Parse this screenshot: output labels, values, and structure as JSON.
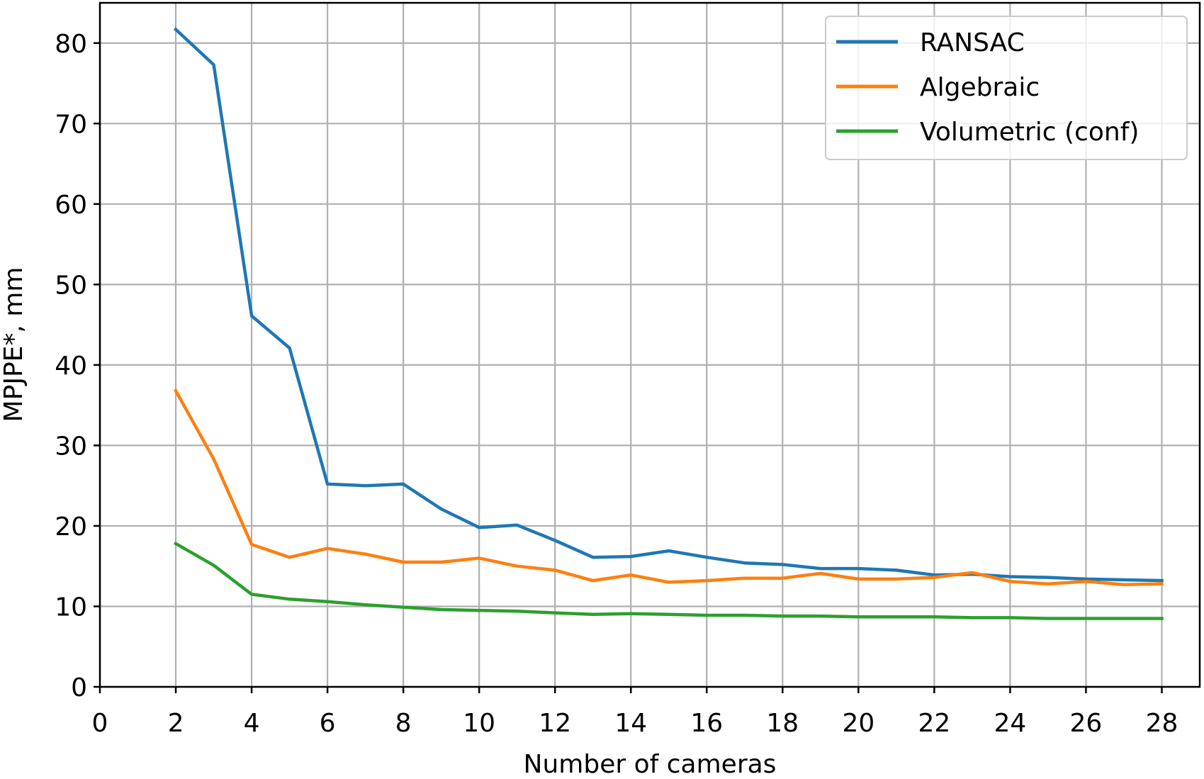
{
  "chart_data": {
    "type": "line",
    "title": "",
    "xlabel": "Number of cameras",
    "ylabel": "MPJPE*, mm",
    "xlim": [
      0,
      29
    ],
    "ylim": [
      0,
      85
    ],
    "x_ticks": [
      0,
      2,
      4,
      6,
      8,
      10,
      12,
      14,
      16,
      18,
      20,
      22,
      24,
      26,
      28
    ],
    "y_ticks": [
      0,
      10,
      20,
      30,
      40,
      50,
      60,
      70,
      80
    ],
    "grid": true,
    "legend_position": "top-right",
    "x": [
      2,
      3,
      4,
      5,
      6,
      7,
      8,
      9,
      10,
      11,
      12,
      13,
      14,
      15,
      16,
      17,
      18,
      19,
      20,
      21,
      22,
      23,
      24,
      25,
      26,
      27,
      28
    ],
    "series": [
      {
        "name": "RANSAC",
        "color": "#1f77b4",
        "values": [
          81.7,
          77.3,
          46.1,
          42.1,
          25.2,
          25.0,
          25.2,
          22.1,
          19.8,
          20.1,
          18.2,
          16.1,
          16.2,
          16.9,
          16.1,
          15.4,
          15.2,
          14.7,
          14.7,
          14.5,
          13.9,
          14.0,
          13.7,
          13.6,
          13.4,
          13.3,
          13.2
        ]
      },
      {
        "name": "Algebraic",
        "color": "#ff7f0e",
        "values": [
          36.8,
          28.3,
          17.7,
          16.1,
          17.2,
          16.5,
          15.5,
          15.5,
          16.0,
          15.0,
          14.5,
          13.2,
          13.9,
          13.0,
          13.2,
          13.5,
          13.5,
          14.1,
          13.4,
          13.4,
          13.6,
          14.2,
          13.1,
          12.8,
          13.1,
          12.7,
          12.8
        ]
      },
      {
        "name": "Volumetric (conf)",
        "color": "#2ca02c",
        "values": [
          17.8,
          15.1,
          11.5,
          10.9,
          10.6,
          10.2,
          9.9,
          9.6,
          9.5,
          9.4,
          9.2,
          9.0,
          9.1,
          9.0,
          8.9,
          8.9,
          8.8,
          8.8,
          8.7,
          8.7,
          8.7,
          8.6,
          8.6,
          8.5,
          8.5,
          8.5,
          8.5
        ]
      }
    ]
  }
}
